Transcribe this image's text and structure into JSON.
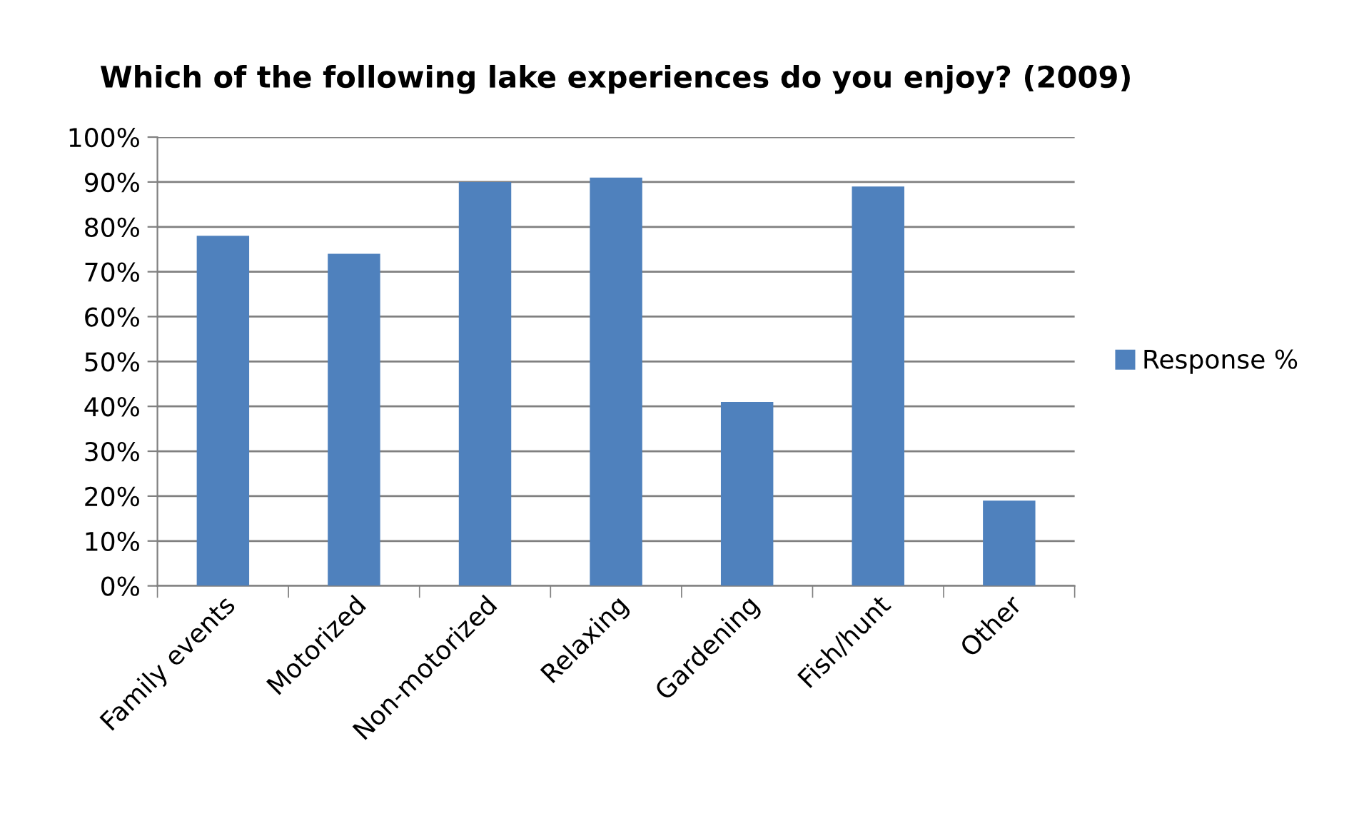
{
  "chart_data": {
    "type": "bar",
    "title": "Which of the following lake experiences do you enjoy? (2009)",
    "categories": [
      "Family events",
      "Motorized",
      "Non-motorized",
      "Relaxing",
      "Gardening",
      "Fish/hunt",
      "Other"
    ],
    "series": [
      {
        "name": "Response %",
        "color": "#4f81bd",
        "values": [
          78,
          74,
          90,
          91,
          41,
          89,
          19
        ]
      }
    ],
    "ylim": [
      0,
      100
    ],
    "yticks": [
      {
        "value": 0,
        "label": "0%"
      },
      {
        "value": 10,
        "label": "10%"
      },
      {
        "value": 20,
        "label": "20%"
      },
      {
        "value": 30,
        "label": "30%"
      },
      {
        "value": 40,
        "label": "40%"
      },
      {
        "value": 50,
        "label": "50%"
      },
      {
        "value": 60,
        "label": "60%"
      },
      {
        "value": 70,
        "label": "70%"
      },
      {
        "value": 80,
        "label": "80%"
      },
      {
        "value": 90,
        "label": "90%"
      },
      {
        "value": 100,
        "label": "100%"
      }
    ],
    "grid": "y",
    "legend": "right"
  }
}
